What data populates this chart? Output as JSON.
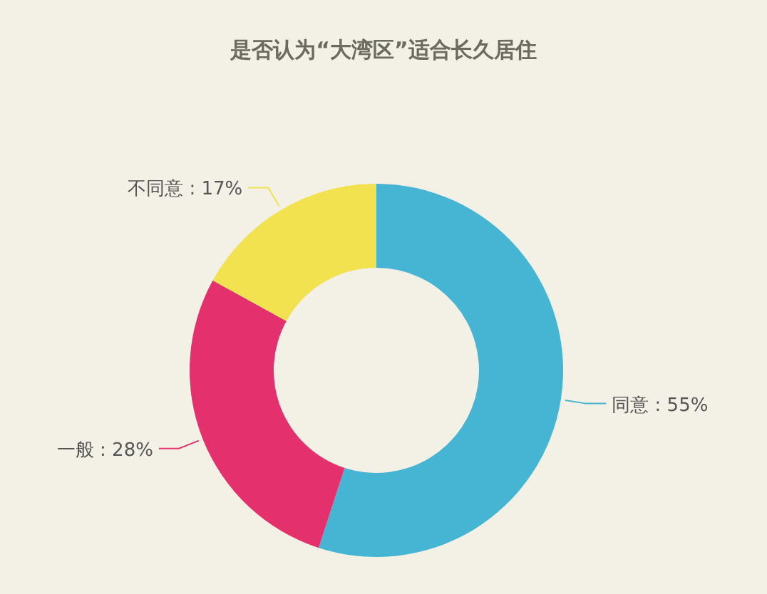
{
  "chart_data": {
    "type": "donut",
    "title": "是否认为“大湾区”适合长久居住",
    "categories": [
      "同意",
      "一般",
      "不同意"
    ],
    "values": [
      55,
      28,
      17
    ],
    "colors": [
      "#45b5d3",
      "#e5306e",
      "#f2e250"
    ],
    "value_labels": [
      ": 55%",
      ": 28%",
      ": 17%"
    ]
  }
}
